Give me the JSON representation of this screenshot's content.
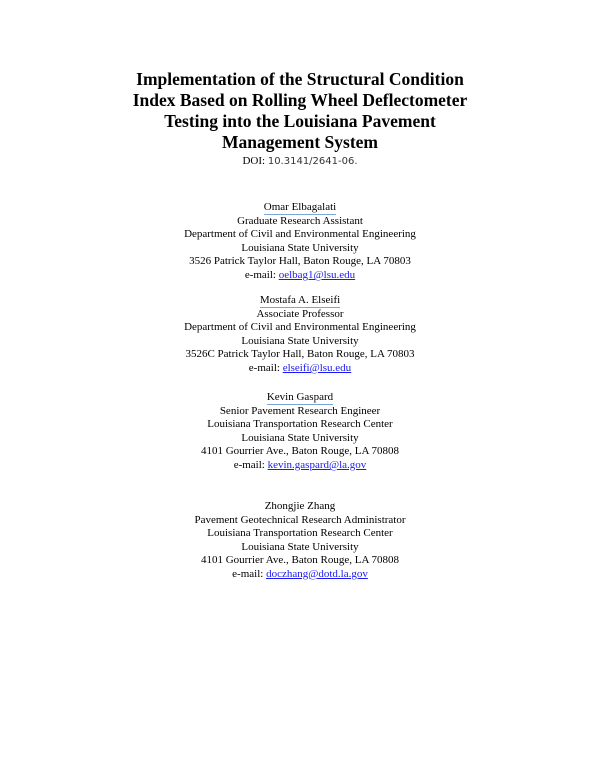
{
  "title": [
    "Implementation of the Structural Condition",
    "Index Based on Rolling Wheel Deflectometer",
    "Testing into the Louisiana Pavement",
    "Management System"
  ],
  "doi": {
    "label": "DOI:",
    "number": "10.3141/2641-06."
  },
  "authors": [
    {
      "name": "Omar Elbagalati",
      "lines": [
        "Graduate Research Assistant",
        "Department of Civil and Environmental Engineering",
        "Louisiana State University",
        "3526 Patrick Taylor Hall, Baton Rouge, LA 70803"
      ],
      "email_label": "e-mail:",
      "email": "oelbag1@lsu.edu"
    },
    {
      "name": "Mostafa A. Elseifi",
      "lines": [
        "Associate Professor",
        "Department of Civil and Environmental Engineering",
        "Louisiana State University",
        "3526C Patrick Taylor Hall, Baton Rouge, LA 70803"
      ],
      "email_label": "e-mail:",
      "email": "elseifi@lsu.edu"
    },
    {
      "name": "Kevin Gaspard",
      "lines": [
        "Senior Pavement Research Engineer",
        "Louisiana Transportation Research Center",
        "Louisiana State University",
        "4101 Gourrier Ave., Baton Rouge, LA 70808"
      ],
      "email_label": "e-mail:",
      "email": "kevin.gaspard@la.gov"
    },
    {
      "name": "Zhongjie Zhang",
      "lines": [
        "Pavement Geotechnical Research Administrator",
        "Louisiana Transportation Research Center",
        "Louisiana State University",
        "4101 Gourrier Ave., Baton Rouge, LA 70808"
      ],
      "email_label": "e-mail:",
      "email": "doczhang@dotd.la.gov"
    }
  ]
}
